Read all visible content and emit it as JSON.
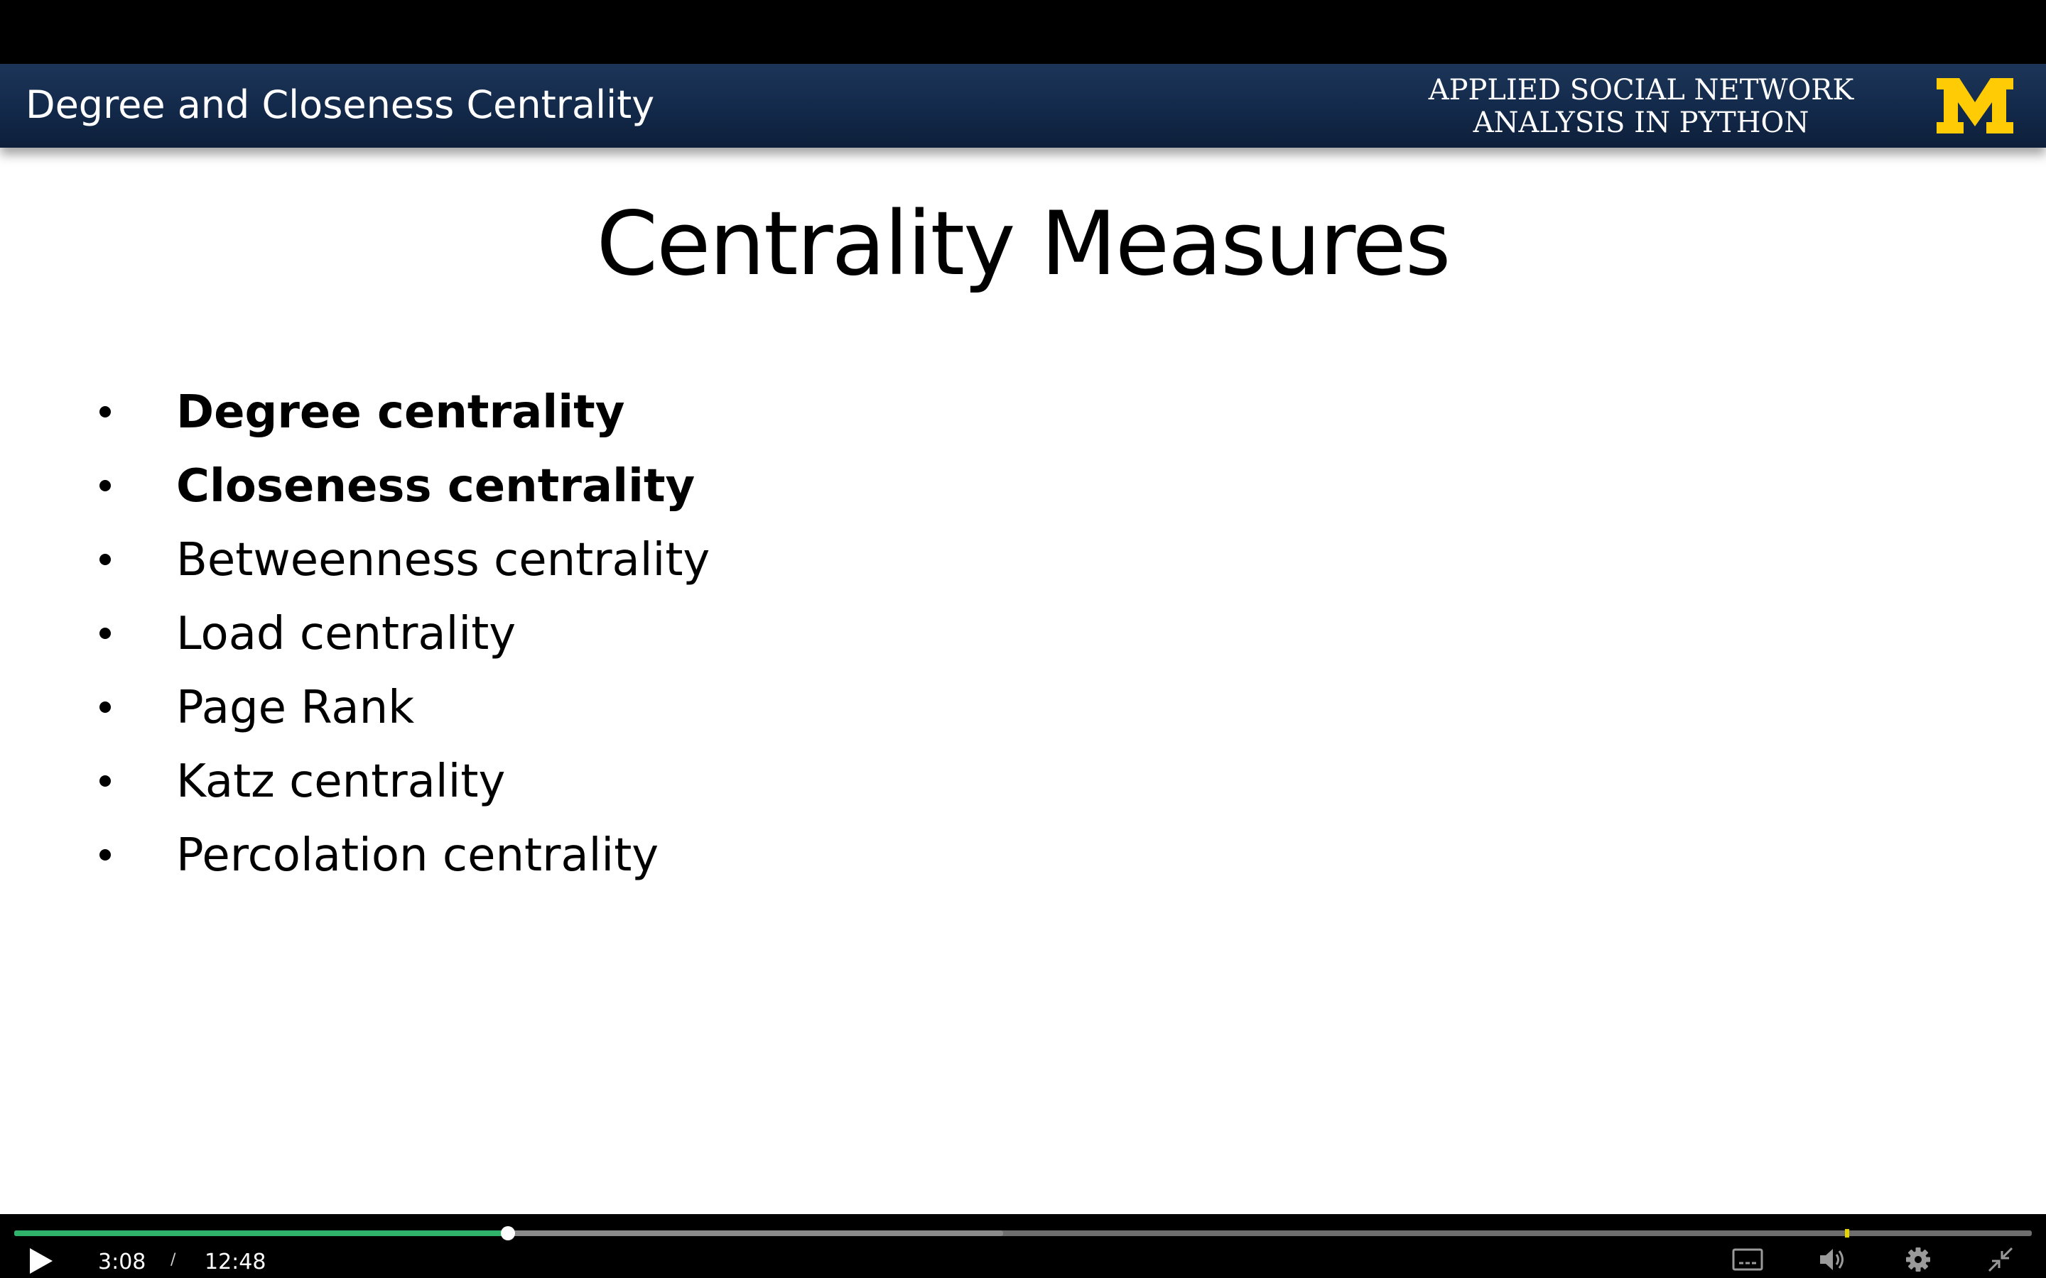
{
  "slide": {
    "header_title": "Degree and Closeness Centrality",
    "course_title_line1": "APPLIED SOCIAL NETWORK",
    "course_title_line2": "ANALYSIS IN PYTHON",
    "logo_icon": "block-m-logo-icon",
    "title": "Centrality Measures",
    "bullets": [
      {
        "text": "Degree centrality",
        "bold": true
      },
      {
        "text": "Closeness centrality",
        "bold": true
      },
      {
        "text": "Betweenness centrality",
        "bold": false
      },
      {
        "text": "Load centrality",
        "bold": false
      },
      {
        "text": "Page Rank",
        "bold": false
      },
      {
        "text": "Katz centrality",
        "bold": false
      },
      {
        "text": "Percolation centrality",
        "bold": false
      }
    ]
  },
  "player": {
    "current_time": "3:08",
    "separator": "/",
    "total_time": "12:48",
    "progress_fraction": 0.2448,
    "buffered_fraction": 0.49,
    "marker_fraction": 0.9075,
    "icons": {
      "play": "play-icon",
      "captions": "captions-icon",
      "volume": "volume-icon",
      "settings": "gear-icon",
      "exit_fullscreen": "exit-fullscreen-icon"
    },
    "colors": {
      "played": "#2fb36a",
      "marker": "#e5d300",
      "header": "#13294a",
      "logo": "#ffcb05"
    }
  }
}
